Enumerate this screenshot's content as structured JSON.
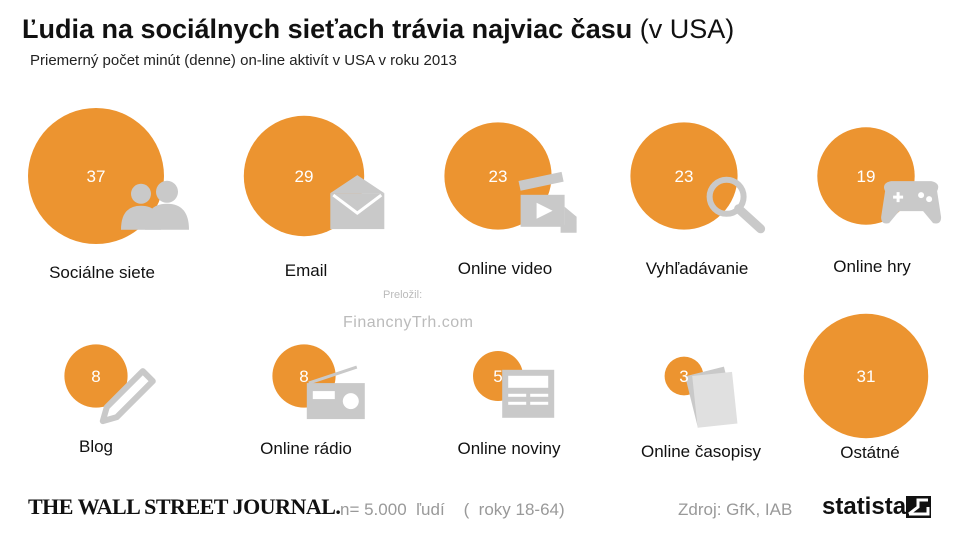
{
  "header": {
    "title_bold": "Ľudia na sociálnych sieťach trávia najviac času",
    "title_light": "(v USA)",
    "subtitle": "Priemerný počet minút (denne) on-line aktivít v USA v roku 2013"
  },
  "watermark": {
    "small": "Preložil:",
    "main": "FinancnyTrh.com"
  },
  "footer": {
    "publisher": "THE WALL STREET JOURNAL.",
    "sample": "n= 5.000  ľudí    (  roky 18-64)",
    "source": "Zdroj: GfK, IAB",
    "brand": "statista"
  },
  "chart_data": {
    "type": "bubble",
    "unit": "minutes per day",
    "accent_color": "#ec9430",
    "icon_color": "#c9c9c9",
    "items": [
      {
        "label": "Sociálne siete",
        "value": 37,
        "icon": "people-icon"
      },
      {
        "label": "Email",
        "value": 29,
        "icon": "envelope-icon"
      },
      {
        "label": "Online video",
        "value": 23,
        "icon": "clapperboard-icon"
      },
      {
        "label": "Vyhľadávanie",
        "value": 23,
        "icon": "magnifier-icon"
      },
      {
        "label": "Online hry",
        "value": 19,
        "icon": "gamepad-icon"
      },
      {
        "label": "Blog",
        "value": 8,
        "icon": "pencil-icon"
      },
      {
        "label": "Online rádio",
        "value": 8,
        "icon": "radio-icon"
      },
      {
        "label": "Online noviny",
        "value": 5,
        "icon": "newspaper-icon"
      },
      {
        "label": "Online časopisy",
        "value": 3,
        "icon": "magazine-icon"
      },
      {
        "label": "Ostátné",
        "value": 31,
        "icon": ""
      }
    ]
  }
}
